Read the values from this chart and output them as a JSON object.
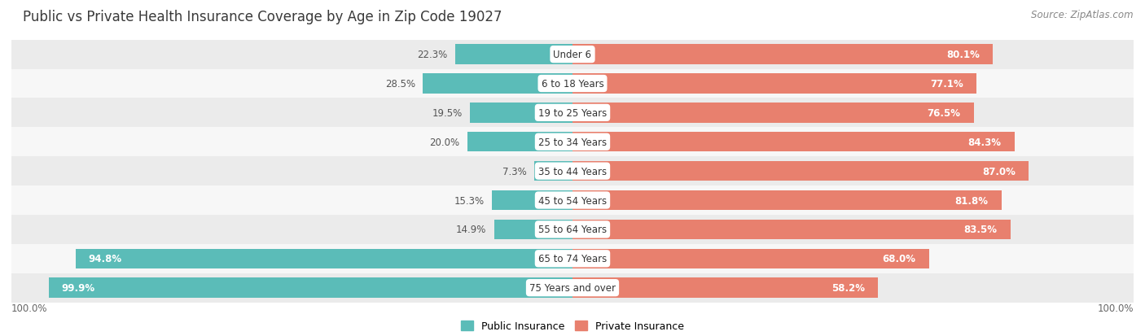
{
  "title": "Public vs Private Health Insurance Coverage by Age in Zip Code 19027",
  "source": "Source: ZipAtlas.com",
  "categories": [
    "Under 6",
    "6 to 18 Years",
    "19 to 25 Years",
    "25 to 34 Years",
    "35 to 44 Years",
    "45 to 54 Years",
    "55 to 64 Years",
    "65 to 74 Years",
    "75 Years and over"
  ],
  "public_values": [
    22.3,
    28.5,
    19.5,
    20.0,
    7.3,
    15.3,
    14.9,
    94.8,
    99.9
  ],
  "private_values": [
    80.1,
    77.1,
    76.5,
    84.3,
    87.0,
    81.8,
    83.5,
    68.0,
    58.2
  ],
  "public_color": "#5bbcb8",
  "private_color": "#e8806e",
  "public_label": "Public Insurance",
  "private_label": "Private Insurance",
  "row_bg_colors": [
    "#ebebeb",
    "#f7f7f7"
  ],
  "title_fontsize": 12,
  "source_fontsize": 8.5,
  "bar_label_fontsize": 8.5,
  "cat_label_fontsize": 8.5,
  "legend_fontsize": 9,
  "x_left_label": "100.0%",
  "x_right_label": "100.0%"
}
